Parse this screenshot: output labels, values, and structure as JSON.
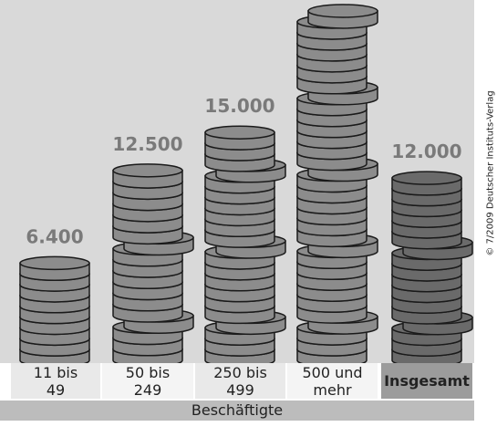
{
  "chart_data": {
    "type": "coin-stack",
    "categories": [
      "11 bis 49",
      "50 bis 249",
      "250 bis 499",
      "500 und mehr",
      "Insgesamt"
    ],
    "values": [
      6400,
      12500,
      15000,
      23000,
      12000
    ],
    "value_labels": [
      "6.400",
      "12.500",
      "15.000",
      null,
      "12.000"
    ],
    "colors": [
      "#8c8c8c",
      "#8c8c8c",
      "#8c8c8c",
      "#8c8c8c",
      "#6a6a6a"
    ],
    "xlabel": "Beschäftigte",
    "source": "© 7/2009 Deutscher Instituts-Verlag"
  }
}
